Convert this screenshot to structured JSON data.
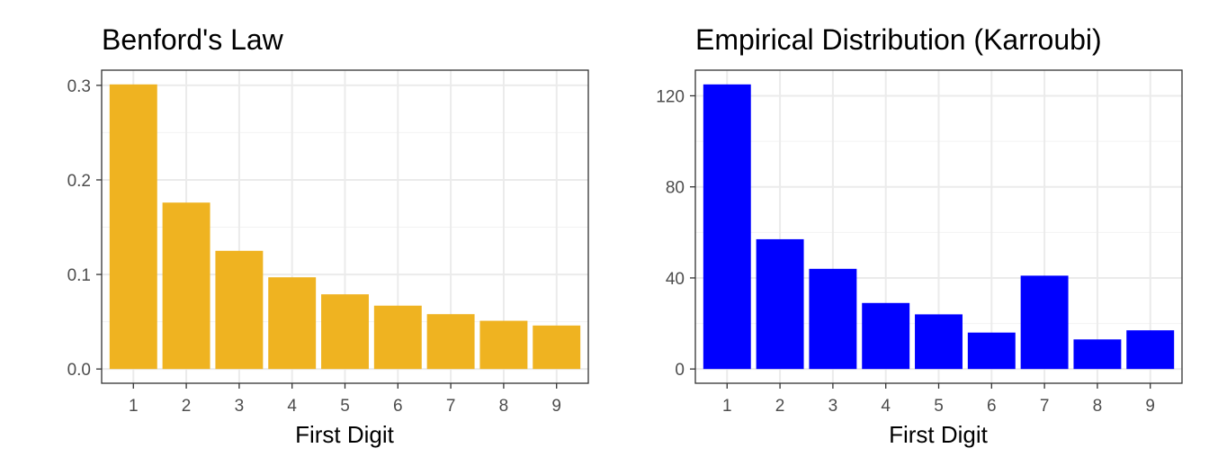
{
  "chart_data": [
    {
      "type": "bar",
      "title": "Benford's Law",
      "xlabel": "First Digit",
      "ylabel": "",
      "categories": [
        "1",
        "2",
        "3",
        "4",
        "5",
        "6",
        "7",
        "8",
        "9"
      ],
      "values": [
        0.301,
        0.176,
        0.125,
        0.097,
        0.079,
        0.067,
        0.058,
        0.051,
        0.046
      ],
      "ylim": [
        0,
        0.3
      ],
      "yticks": [
        0.0,
        0.1,
        0.2,
        0.3
      ],
      "ytick_labels": [
        "0.0",
        "0.1",
        "0.2",
        "0.3"
      ],
      "color": "#EFB321",
      "grid": true
    },
    {
      "type": "bar",
      "title": "Empirical Distribution (Karroubi)",
      "xlabel": "First Digit",
      "ylabel": "",
      "categories": [
        "1",
        "2",
        "3",
        "4",
        "5",
        "6",
        "7",
        "8",
        "9"
      ],
      "values": [
        125,
        57,
        44,
        29,
        24,
        16,
        41,
        13,
        17
      ],
      "ylim": [
        0,
        125
      ],
      "yticks": [
        0,
        40,
        80,
        120
      ],
      "ytick_labels": [
        "0",
        "40",
        "80",
        "120"
      ],
      "color": "#0000FF",
      "grid": true
    }
  ]
}
